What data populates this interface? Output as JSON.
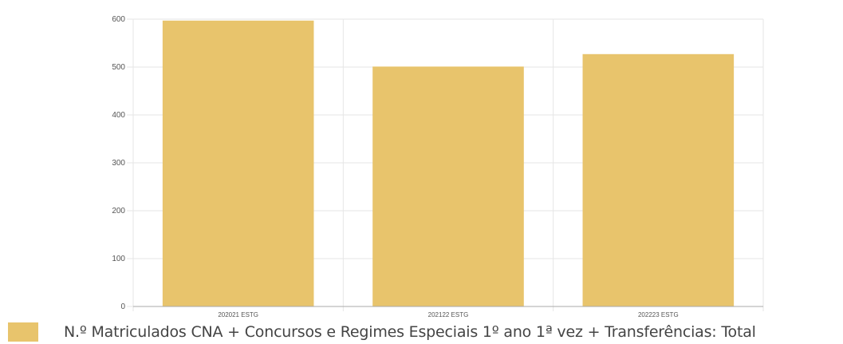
{
  "chart_data": {
    "type": "bar",
    "categories": [
      "202021 ESTG",
      "202122 ESTG",
      "202223 ESTG"
    ],
    "series": [
      {
        "name": "N.º Matriculados CNA + Concursos e Regimes Especiais 1º ano 1ª vez + Transferências: Total",
        "values": [
          597,
          501,
          527
        ],
        "color": "#e8c46c"
      }
    ],
    "yticks": [
      "0",
      "100",
      "200",
      "300",
      "400",
      "500",
      "600"
    ],
    "ylim": [
      0,
      600
    ],
    "grid": true,
    "legend_position": "bottom-left",
    "title": "",
    "xlabel": "",
    "ylabel": ""
  }
}
